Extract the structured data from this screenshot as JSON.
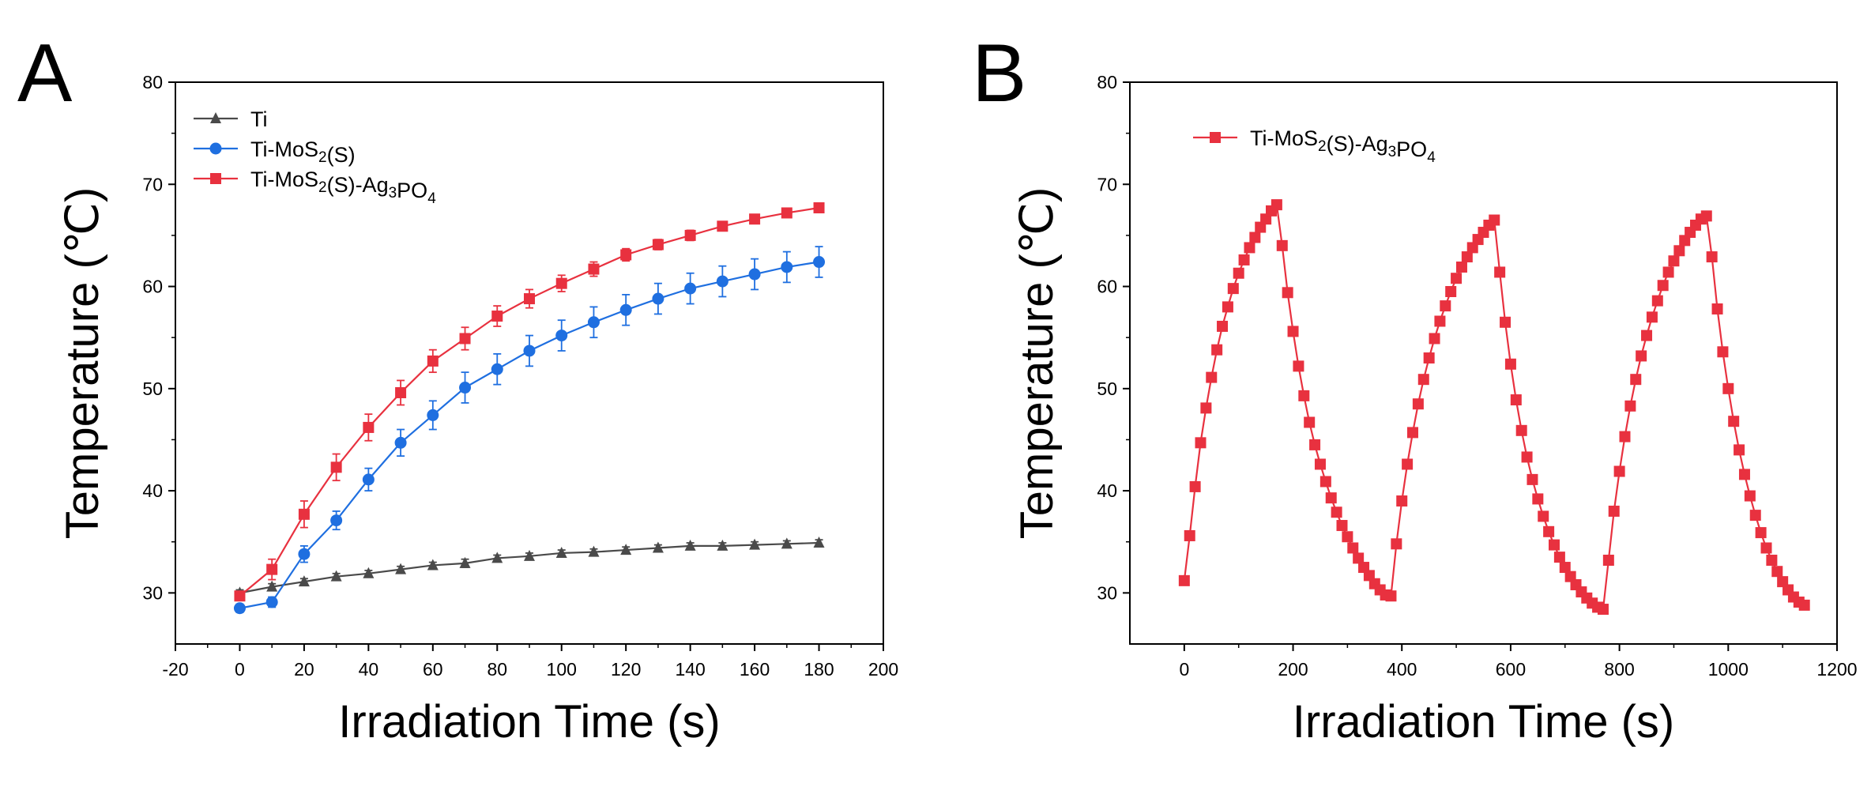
{
  "figure": {
    "panel_a_label": "A",
    "panel_b_label": "B"
  },
  "chart_data": [
    {
      "type": "line",
      "panel": "A",
      "xlabel": "Irradiation Time (s)",
      "ylabel": "Temperature (℃)",
      "xlim": [
        -20,
        200
      ],
      "ylim": [
        25,
        80
      ],
      "xticks": [
        -20,
        0,
        20,
        40,
        60,
        80,
        100,
        120,
        140,
        160,
        180,
        200
      ],
      "yticks": [
        30,
        40,
        50,
        60,
        70,
        80
      ],
      "legend_position": "top-left",
      "x": [
        0,
        10,
        20,
        30,
        40,
        50,
        60,
        70,
        80,
        90,
        100,
        110,
        120,
        130,
        140,
        150,
        160,
        170,
        180
      ],
      "series": [
        {
          "name": "Ti",
          "color": "#4a4a4a",
          "marker": "triangle",
          "legend": {
            "parts": [
              {
                "t": "Ti",
                "s": ""
              }
            ]
          },
          "values": [
            30.0,
            30.6,
            31.1,
            31.6,
            31.9,
            32.3,
            32.7,
            32.9,
            33.4,
            33.6,
            33.9,
            34.0,
            34.2,
            34.4,
            34.6,
            34.6,
            34.7,
            34.8,
            34.9
          ],
          "errors": [
            0.3,
            0.3,
            0.3,
            0.3,
            0.3,
            0.3,
            0.3,
            0.4,
            0.3,
            0.3,
            0.3,
            0.3,
            0.3,
            0.3,
            0.3,
            0.3,
            0.3,
            0.3,
            0.3
          ]
        },
        {
          "name": "Ti-MoS2(S)",
          "color": "#1f6fe0",
          "marker": "circle",
          "legend": {
            "parts": [
              {
                "t": "Ti-MoS",
                "s": ""
              },
              {
                "t": "2",
                "s": "sub"
              },
              {
                "t": "(S)",
                "s": ""
              }
            ]
          },
          "values": [
            28.5,
            29.1,
            33.8,
            37.1,
            41.1,
            44.7,
            47.4,
            50.1,
            51.9,
            53.7,
            55.2,
            56.5,
            57.7,
            58.8,
            59.8,
            60.5,
            61.2,
            61.9,
            62.4
          ],
          "errors": [
            0.4,
            0.5,
            0.8,
            0.9,
            1.1,
            1.3,
            1.4,
            1.5,
            1.5,
            1.5,
            1.5,
            1.5,
            1.5,
            1.5,
            1.5,
            1.5,
            1.5,
            1.5,
            1.5
          ]
        },
        {
          "name": "Ti-MoS2(S)-Ag3PO4",
          "color": "#e8313f",
          "marker": "square",
          "legend": {
            "parts": [
              {
                "t": "Ti-MoS",
                "s": ""
              },
              {
                "t": "2",
                "s": "sub"
              },
              {
                "t": "(S)-Ag",
                "s": ""
              },
              {
                "t": "3",
                "s": "sub"
              },
              {
                "t": "PO",
                "s": ""
              },
              {
                "t": "4",
                "s": "sub"
              }
            ]
          },
          "values": [
            29.7,
            32.3,
            37.7,
            42.3,
            46.2,
            49.6,
            52.7,
            54.9,
            57.1,
            58.8,
            60.3,
            61.7,
            63.1,
            64.1,
            65.0,
            65.9,
            66.6,
            67.2,
            67.7
          ],
          "errors": [
            0.4,
            1.0,
            1.3,
            1.3,
            1.3,
            1.2,
            1.1,
            1.1,
            1.0,
            0.9,
            0.8,
            0.7,
            0.6,
            0.5,
            0.5,
            0.4,
            0.4,
            0.4,
            0.4
          ]
        }
      ]
    },
    {
      "type": "line",
      "panel": "B",
      "xlabel": "Irradiation Time (s)",
      "ylabel": "Temperature (℃)",
      "xlim": [
        -100,
        1200
      ],
      "ylim": [
        25,
        80
      ],
      "xticks": [
        0,
        200,
        400,
        600,
        800,
        1000,
        1200
      ],
      "yticks": [
        30,
        40,
        50,
        60,
        70,
        80
      ],
      "legend_position": "top-left",
      "sample_interval_s": 10,
      "x_start": 0,
      "series": [
        {
          "name": "Ti-MoS2(S)-Ag3PO4",
          "color": "#e8313f",
          "marker": "square",
          "legend": {
            "parts": [
              {
                "t": "Ti-MoS",
                "s": ""
              },
              {
                "t": "2",
                "s": "sub"
              },
              {
                "t": "(S)-Ag",
                "s": ""
              },
              {
                "t": "3",
                "s": "sub"
              },
              {
                "t": "PO",
                "s": ""
              },
              {
                "t": "4",
                "s": "sub"
              }
            ]
          },
          "values": [
            31.2,
            35.6,
            40.4,
            44.7,
            48.1,
            51.1,
            53.8,
            56.1,
            58.0,
            59.8,
            61.3,
            62.6,
            63.8,
            64.8,
            65.8,
            66.6,
            67.4,
            68.0,
            64.0,
            59.4,
            55.6,
            52.2,
            49.3,
            46.7,
            44.5,
            42.6,
            40.9,
            39.3,
            37.9,
            36.6,
            35.5,
            34.4,
            33.4,
            32.5,
            31.7,
            30.9,
            30.3,
            29.8,
            29.7,
            34.8,
            39.0,
            42.6,
            45.7,
            48.5,
            50.9,
            53.0,
            54.9,
            56.6,
            58.1,
            59.5,
            60.8,
            61.9,
            62.9,
            63.8,
            64.6,
            65.3,
            66.0,
            66.5,
            61.4,
            56.5,
            52.4,
            48.9,
            45.9,
            43.3,
            41.1,
            39.2,
            37.5,
            36.0,
            34.7,
            33.5,
            32.5,
            31.6,
            30.8,
            30.1,
            29.5,
            29.0,
            28.6,
            28.4,
            33.2,
            38.0,
            41.9,
            45.3,
            48.3,
            50.9,
            53.2,
            55.2,
            57.0,
            58.6,
            60.1,
            61.4,
            62.5,
            63.5,
            64.5,
            65.3,
            66.0,
            66.6,
            66.9,
            62.9,
            57.8,
            53.6,
            50.0,
            46.8,
            44.0,
            41.6,
            39.5,
            37.6,
            35.9,
            34.4,
            33.2,
            32.1,
            31.1,
            30.3,
            29.6,
            29.1,
            28.8
          ]
        }
      ]
    }
  ]
}
